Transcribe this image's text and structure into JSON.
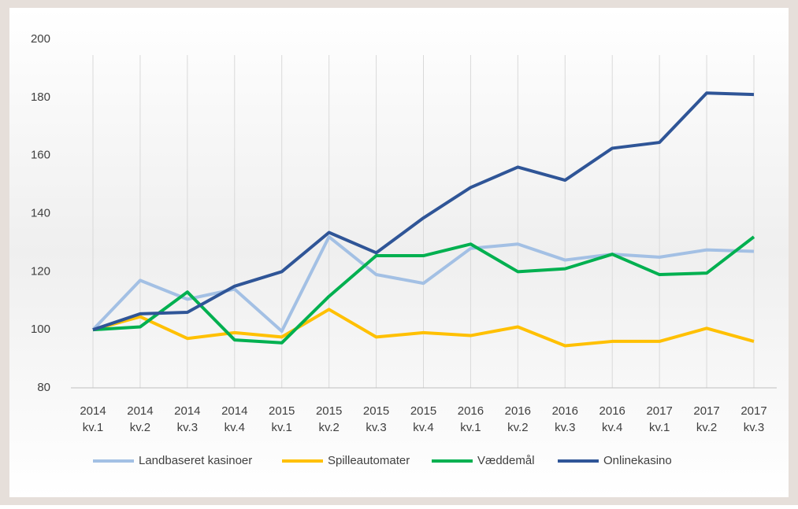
{
  "chart_data": {
    "type": "line",
    "categories": [
      [
        "2014",
        "kv.1"
      ],
      [
        "2014",
        "kv.2"
      ],
      [
        "2014",
        "kv.3"
      ],
      [
        "2014",
        "kv.4"
      ],
      [
        "2015",
        "kv.1"
      ],
      [
        "2015",
        "kv.2"
      ],
      [
        "2015",
        "kv.3"
      ],
      [
        "2015",
        "kv.4"
      ],
      [
        "2016",
        "kv.1"
      ],
      [
        "2016",
        "kv.2"
      ],
      [
        "2016",
        "kv.3"
      ],
      [
        "2016",
        "kv.4"
      ],
      [
        "2017",
        "kv.1"
      ],
      [
        "2017",
        "kv.2"
      ],
      [
        "2017",
        "kv.3"
      ]
    ],
    "series": [
      {
        "name": "Landbaseret kasinoer",
        "color": "#a3c0e4",
        "values": [
          100,
          117,
          110.5,
          114,
          99.5,
          132,
          119,
          116,
          128,
          129.5,
          124,
          126,
          125,
          127.5,
          127
        ]
      },
      {
        "name": "Spilleautomater",
        "color": "#ffc000",
        "values": [
          100,
          104.5,
          97,
          99,
          97.5,
          107,
          97.5,
          99,
          98,
          101,
          94.5,
          96,
          96,
          100.5,
          96
        ]
      },
      {
        "name": "Væddemål",
        "color": "#00b050",
        "values": [
          100,
          101,
          113,
          96.5,
          95.5,
          111.5,
          125.5,
          125.5,
          129.5,
          120,
          121,
          126,
          119,
          119.5,
          132
        ]
      },
      {
        "name": "Onlinekasino",
        "color": "#2f5597",
        "values": [
          100,
          105.5,
          106,
          115,
          120,
          133.5,
          126.5,
          138.5,
          149,
          156,
          151.5,
          162.5,
          164.5,
          181.5,
          181
        ]
      }
    ],
    "ylim": [
      80,
      200
    ],
    "yticks": [
      80,
      100,
      120,
      140,
      160,
      180,
      200
    ],
    "grid": true,
    "legend": "bottom"
  }
}
